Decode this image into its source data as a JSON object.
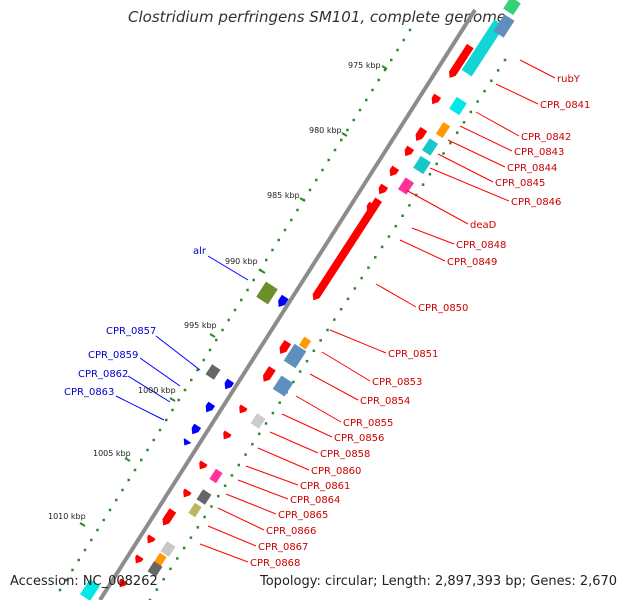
{
  "title": "Clostridium perfringens SM101, complete genome",
  "footer": {
    "accession": "Accession: NC_008262",
    "topology": "Topology: circular; Length: 2,897,393 bp; Genes: 2,670"
  },
  "ticks": [
    "975 kbp",
    "980 kbp",
    "985 kbp",
    "990 kbp",
    "995 kbp",
    "1000 kbp",
    "1005 kbp",
    "1010 kbp"
  ],
  "labels_forward": [
    "rubY",
    "CPR_0841",
    "CPR_0842",
    "CPR_0843",
    "CPR_0844",
    "CPR_0845",
    "CPR_0846",
    "deaD",
    "CPR_0848",
    "CPR_0849",
    "CPR_0850",
    "CPR_0851",
    "CPR_0853",
    "CPR_0854",
    "CPR_0855",
    "CPR_0856",
    "CPR_0858",
    "CPR_0860",
    "CPR_0861",
    "CPR_0864",
    "CPR_0865",
    "CPR_0866",
    "CPR_0867",
    "CPR_0868"
  ],
  "labels_reverse": [
    "alr",
    "CPR_0857",
    "CPR_0859",
    "CPR_0862",
    "CPR_0863"
  ],
  "colors": {
    "forward_gene": "#ff0000",
    "reverse_gene": "#0000ff",
    "forward_label": "#cc0000",
    "reverse_label": "#0000cc",
    "backbone": "#888888",
    "gc_dots": "#2a8a2a"
  }
}
